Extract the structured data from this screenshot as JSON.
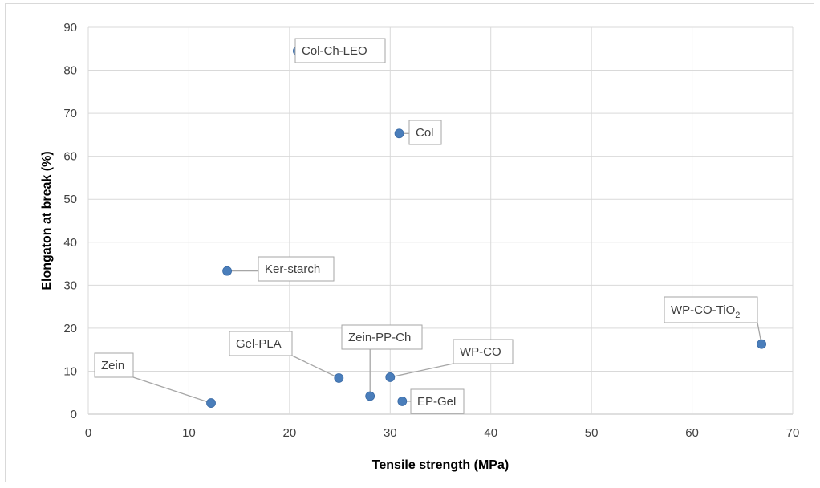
{
  "chart_data": {
    "type": "scatter",
    "title": "",
    "xlabel": "Tensile strength (MPa)",
    "ylabel": "Elongaton at break (%)",
    "xlim": [
      0,
      70
    ],
    "ylim": [
      0,
      90
    ],
    "x_ticks": [
      "0",
      "10",
      "20",
      "30",
      "40",
      "50",
      "60",
      "70"
    ],
    "y_ticks": [
      "0",
      "10",
      "20",
      "30",
      "40",
      "50",
      "60",
      "70",
      "80",
      "90"
    ],
    "grid": true,
    "legend": "none",
    "marker_color": "#4a7ebb",
    "points": [
      {
        "label": "Col-Ch-LEO",
        "sub": "",
        "x": 20.8,
        "y": 84.5
      },
      {
        "label": "Col",
        "sub": "",
        "x": 30.9,
        "y": 65.3
      },
      {
        "label": "Ker-starch",
        "sub": "",
        "x": 13.8,
        "y": 33.3
      },
      {
        "label": "WP-CO-TiO",
        "sub": "2",
        "x": 66.9,
        "y": 16.3
      },
      {
        "label": "Zein",
        "sub": "",
        "x": 12.2,
        "y": 2.6
      },
      {
        "label": "Gel-PLA",
        "sub": "",
        "x": 24.9,
        "y": 8.4
      },
      {
        "label": "Zein-PP-Ch",
        "sub": "",
        "x": 28.0,
        "y": 4.2
      },
      {
        "label": "WP-CO",
        "sub": "",
        "x": 30.0,
        "y": 8.6
      },
      {
        "label": "EP-Gel",
        "sub": "",
        "x": 31.2,
        "y": 3.0
      }
    ]
  }
}
